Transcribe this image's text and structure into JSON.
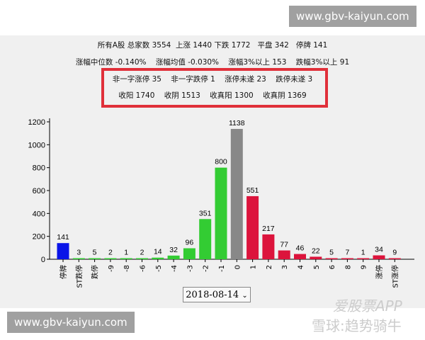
{
  "watermarks": {
    "top": "www.gbv-kaiyun.com",
    "bottom": "www.gbv-kaiyun.com",
    "app": "爱股票APP",
    "app2": "雪球:趋势骑牛"
  },
  "stats": {
    "line1": "所有A股 总家数 3554  上涨 1440 下跌 1772   平盘 342   停牌 141",
    "line2": "涨幅中位数 -0.140%    涨幅均值 -0.030%    涨幅3%以上 153    跌幅3%以上 91",
    "line3": "非一字涨停 35    非一字跌停 1    涨停未遂 23    跌停未遂 3",
    "line4": "收阳 1740    收阴 1513    收真阳 1300    收真阴 1369"
  },
  "date_select": {
    "value": "2018-08-14",
    "icon": "chevron-down-icon"
  },
  "chart_data": {
    "type": "bar",
    "categories": [
      "停牌",
      "ST跌停",
      "跌停",
      "-9",
      "-8",
      "-6",
      "-5",
      "-4",
      "-3",
      "-2",
      "-1",
      "0",
      "1",
      "2",
      "3",
      "4",
      "5",
      "6",
      "8",
      "9",
      "涨停",
      "ST涨停"
    ],
    "values": [
      141,
      3,
      5,
      2,
      1,
      2,
      14,
      32,
      96,
      351,
      800,
      1138,
      551,
      217,
      77,
      46,
      22,
      5,
      7,
      1,
      34,
      9
    ],
    "yticks": [
      0,
      200,
      400,
      600,
      800,
      1000,
      1200
    ],
    "ylim": [
      0,
      1200
    ],
    "grid": false,
    "colors": {
      "suspended": "#0a14e8",
      "down": "#33cc33",
      "flat": "#888888",
      "up": "#dc143c"
    }
  }
}
